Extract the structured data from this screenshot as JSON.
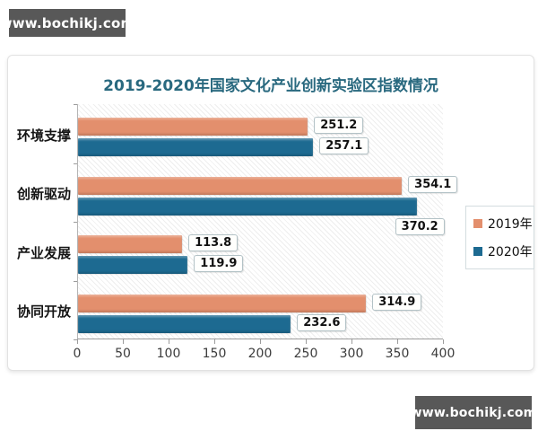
{
  "watermark": {
    "text": "www.bochikj.com"
  },
  "colors": {
    "banner_bg": "#585858",
    "banner_text": "#ffffff",
    "title": "#29697f",
    "series_2019": "#e38f6d",
    "series_2020": "#1d6a91",
    "axis": "#9c9c9c"
  },
  "chart_data": {
    "type": "bar",
    "orientation": "horizontal",
    "title": "2019-2020年国家文化产业创新实验区指数情况",
    "categories": [
      "环境支撑",
      "创新驱动",
      "产业发展",
      "协同开放"
    ],
    "series": [
      {
        "name": "2019年",
        "color": "#e38f6d",
        "values": [
          251.2,
          354.1,
          113.8,
          314.9
        ]
      },
      {
        "name": "2020年",
        "color": "#1d6a91",
        "values": [
          257.1,
          370.2,
          119.9,
          232.6
        ]
      }
    ],
    "xlim": [
      0,
      400
    ],
    "x_ticks": [
      0,
      50,
      100,
      150,
      200,
      250,
      300,
      350,
      400
    ],
    "grid": false,
    "legend_position": "right",
    "hatch_background": true
  }
}
